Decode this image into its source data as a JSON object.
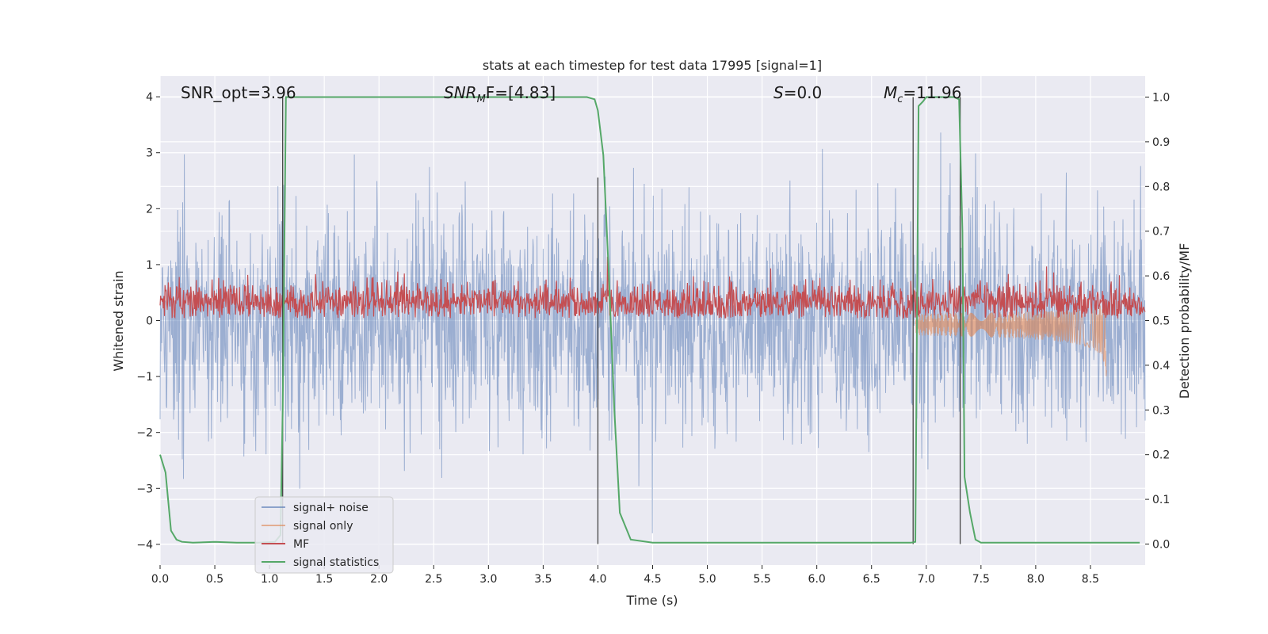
{
  "chart_data": {
    "type": "line",
    "title": "stats at each timestep for test data 17995 [signal=1]",
    "xlabel": "Time (s)",
    "ylabel_left": "Whitened strain",
    "ylabel_right": "Detection probability/MF",
    "xlim": [
      0.0,
      9.0
    ],
    "ylim_left": [
      -4.37,
      4.37
    ],
    "ylim_right": [
      -0.047,
      1.047
    ],
    "xticks": [
      "0.0",
      "0.5",
      "1.0",
      "1.5",
      "2.0",
      "2.5",
      "3.0",
      "3.5",
      "4.0",
      "4.5",
      "5.0",
      "5.5",
      "6.0",
      "6.5",
      "7.0",
      "7.5",
      "8.0",
      "8.5"
    ],
    "xtick_values": [
      0.0,
      0.5,
      1.0,
      1.5,
      2.0,
      2.5,
      3.0,
      3.5,
      4.0,
      4.5,
      5.0,
      5.5,
      6.0,
      6.5,
      7.0,
      7.5,
      8.0,
      8.5
    ],
    "yticks_left": [
      "−4",
      "−3",
      "−2",
      "−1",
      "0",
      "1",
      "2",
      "3",
      "4"
    ],
    "ytick_left_values": [
      -4,
      -3,
      -2,
      -1,
      0,
      1,
      2,
      3,
      4
    ],
    "yticks_right": [
      "0.0",
      "0.1",
      "0.2",
      "0.3",
      "0.4",
      "0.5",
      "0.6",
      "0.7",
      "0.8",
      "0.9",
      "1.0"
    ],
    "ytick_right_values": [
      0.0,
      0.1,
      0.2,
      0.3,
      0.4,
      0.5,
      0.6,
      0.7,
      0.8,
      0.9,
      1.0
    ],
    "annotations": [
      {
        "text": "SNR_opt=3.96",
        "x": 0.2,
        "y": 4.05
      },
      {
        "html_main": "SNR",
        "html_sub": "M",
        "html_rest": "F=[4.83]",
        "x": 2.6,
        "y": 4.05
      },
      {
        "html_main": "S",
        "html_sub": "",
        "html_rest": "=0.0",
        "x": 5.6,
        "y": 4.05
      },
      {
        "html_main": "M",
        "html_sub": "c",
        "html_rest": "=11.96",
        "x": 6.6,
        "y": 4.05
      }
    ],
    "series": [
      {
        "name": "signal+ noise",
        "color": "#4c72b0",
        "axis": "left",
        "kind": "noise",
        "band_std": 1.0
      },
      {
        "name": "signal only",
        "color": "#dd8452",
        "axis": "left",
        "kind": "chirp",
        "t_start": 6.9,
        "t_end": 8.65,
        "peak": -0.9
      },
      {
        "name": "MF",
        "color": "#c44e52",
        "axis": "right",
        "kind": "mf",
        "base": 0.54,
        "spread": 0.04
      },
      {
        "name": "signal statistics",
        "color": "#55a868",
        "axis": "right",
        "x": [
          0.0,
          0.05,
          0.1,
          0.15,
          0.2,
          0.3,
          0.5,
          0.7,
          0.9,
          1.05,
          1.1,
          1.12,
          1.15,
          1.2,
          1.3,
          2.0,
          3.0,
          3.8,
          3.9,
          3.97,
          4.0,
          4.05,
          4.1,
          4.15,
          4.2,
          4.3,
          4.5,
          5.0,
          6.0,
          6.8,
          6.86,
          6.9,
          6.93,
          6.97,
          7.0,
          7.1,
          7.2,
          7.25,
          7.3,
          7.33,
          7.35,
          7.4,
          7.45,
          7.5,
          8.0,
          8.5,
          8.95
        ],
        "y": [
          0.2,
          0.16,
          0.03,
          0.01,
          0.005,
          0.003,
          0.005,
          0.003,
          0.003,
          0.005,
          0.02,
          0.3,
          1.0,
          1.0,
          1.0,
          1.0,
          1.0,
          1.0,
          1.0,
          0.995,
          0.97,
          0.87,
          0.6,
          0.3,
          0.07,
          0.01,
          0.003,
          0.003,
          0.003,
          0.003,
          0.003,
          0.005,
          0.98,
          0.99,
          1.0,
          1.0,
          1.0,
          1.0,
          0.995,
          0.7,
          0.15,
          0.07,
          0.01,
          0.003,
          0.003,
          0.003,
          0.003
        ]
      }
    ],
    "vertical_lines": [
      {
        "x": 1.12,
        "y_top": 1.0
      },
      {
        "x": 4.0,
        "y_top": 0.82
      },
      {
        "x": 6.88,
        "y_top": 1.0
      },
      {
        "x": 7.31,
        "y_top": 1.0
      }
    ],
    "legend": {
      "position": "lower-left",
      "entries": [
        "signal+ noise",
        "signal only",
        "MF",
        "signal statistics"
      ]
    },
    "grid": true
  }
}
